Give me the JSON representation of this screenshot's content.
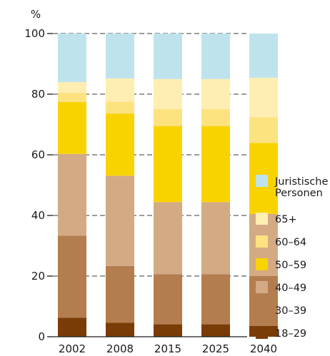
{
  "chart_data": {
    "type": "bar",
    "stacked": true,
    "ylabel": "%",
    "ylim": [
      0,
      100
    ],
    "yticks": [
      0,
      20,
      40,
      60,
      80,
      100
    ],
    "categories": [
      "2002",
      "2008",
      "2015",
      "2025",
      "2040"
    ],
    "grid": "horizontal dashed",
    "legend_position": "right",
    "series": [
      {
        "name": "18–29",
        "color": "#7a3c06",
        "values": [
          6.3,
          4.6,
          4.1,
          4.1,
          3.6
        ]
      },
      {
        "name": "30–39",
        "color": "#b37d4f",
        "values": [
          27.0,
          18.7,
          16.5,
          16.5,
          16.4
        ]
      },
      {
        "name": "40–49",
        "color": "#d4aa85",
        "values": [
          27.0,
          29.8,
          23.8,
          23.8,
          20.5
        ]
      },
      {
        "name": "50–59",
        "color": "#f9d300",
        "values": [
          17.1,
          20.5,
          25.1,
          25.1,
          23.4
        ]
      },
      {
        "name": "60–64",
        "color": "#fde280",
        "values": [
          3.1,
          3.9,
          5.6,
          5.6,
          8.5
        ]
      },
      {
        "name": "65+",
        "color": "#feeeb2",
        "values": [
          3.5,
          7.7,
          9.9,
          9.9,
          13.0
        ]
      },
      {
        "name": "Juristische Personen",
        "label_lines": [
          "Juristische",
          "Personen"
        ],
        "color": "#bfe3ec",
        "values": [
          16.0,
          14.8,
          15.0,
          15.0,
          14.6
        ]
      }
    ]
  }
}
